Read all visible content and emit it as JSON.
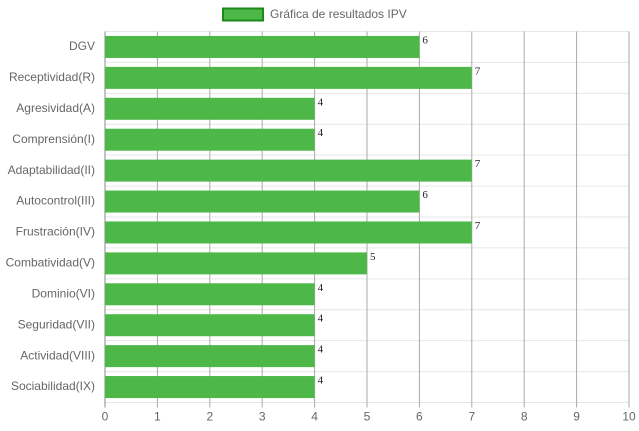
{
  "chart_data": {
    "type": "bar",
    "orientation": "horizontal",
    "categories": [
      "DGV",
      "Receptividad(R)",
      "Agresividad(A)",
      "Comprensión(I)",
      "Adaptabilidad(II)",
      "Autocontrol(III)",
      "Frustración(IV)",
      "Combatividad(V)",
      "Dominio(VI)",
      "Seguridad(VII)",
      "Actividad(VIII)",
      "Sociabilidad(IX)"
    ],
    "series": [
      {
        "name": "Gráfica de resultados IPV",
        "color": "#4db848",
        "border_color": "#1a8a1a",
        "values": [
          6,
          7,
          4,
          4,
          7,
          6,
          7,
          5,
          4,
          4,
          4,
          4
        ]
      }
    ],
    "xlim": [
      0,
      10
    ],
    "xticks": [
      0,
      1,
      2,
      3,
      4,
      5,
      6,
      7,
      8,
      9,
      10
    ],
    "grid": true,
    "legend": "top"
  }
}
